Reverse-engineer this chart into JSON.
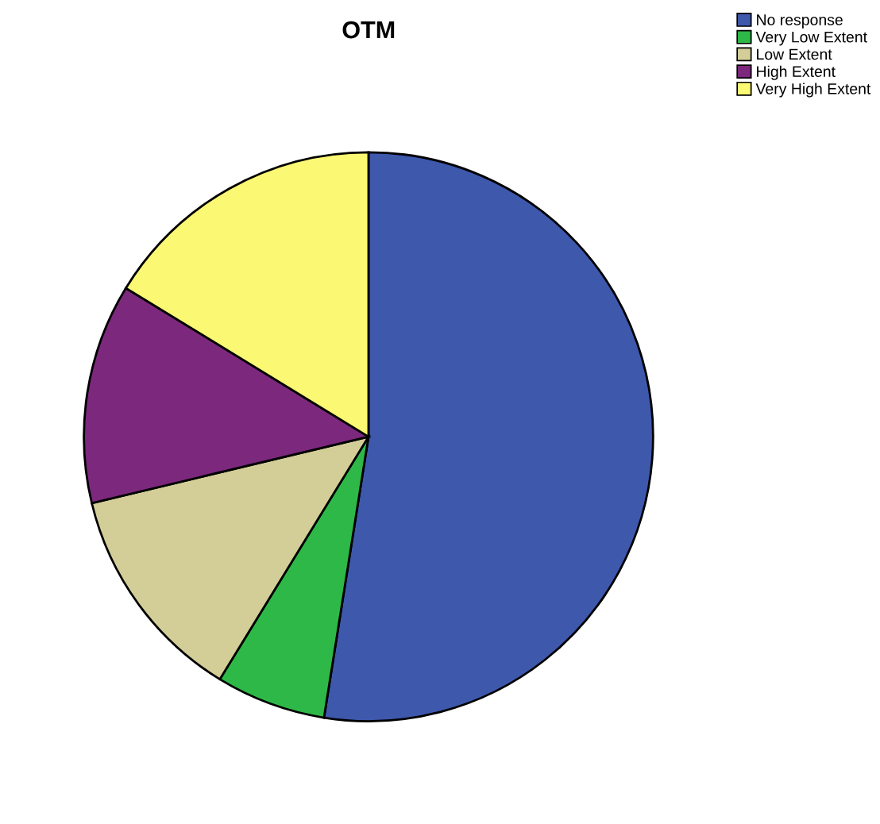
{
  "chart_data": {
    "type": "pie",
    "title": "OTM",
    "categories": [
      "No response",
      "Very Low Extent",
      "Low Extent",
      "High Extent",
      "Very High Extent"
    ],
    "values": [
      52.5,
      6.25,
      12.5,
      12.5,
      16.25
    ],
    "colors": [
      "#3e58ac",
      "#2eb848",
      "#d3ce97",
      "#7c287d",
      "#fbf873"
    ],
    "legend": "top right"
  }
}
